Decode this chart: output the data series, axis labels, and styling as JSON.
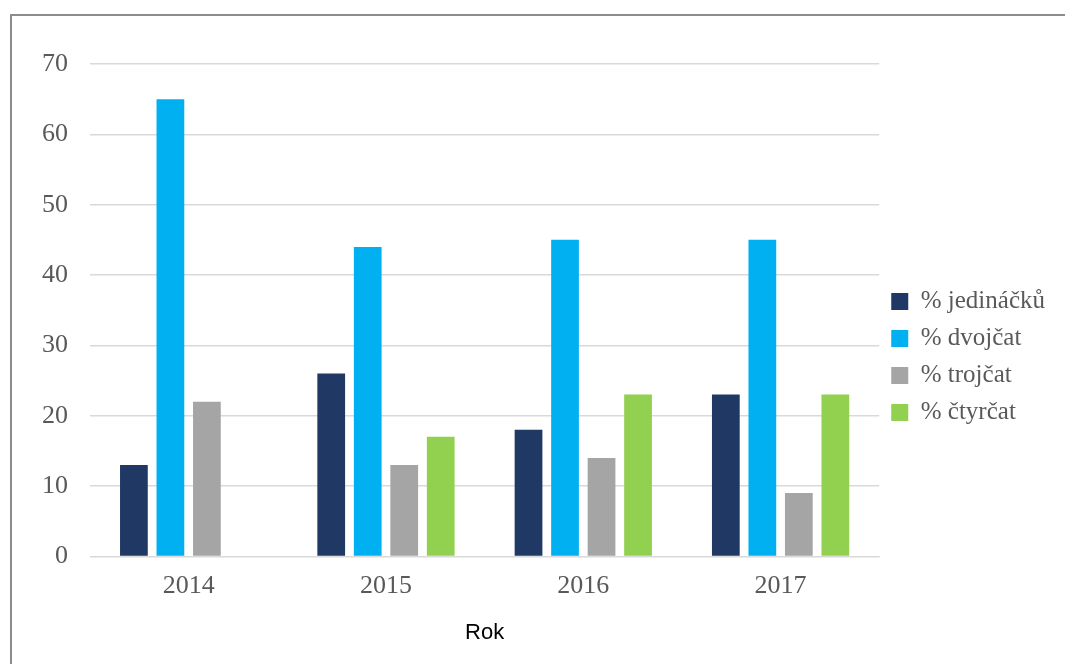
{
  "chart_data": {
    "type": "bar",
    "xlabel": "Rok",
    "categories": [
      "2014",
      "2015",
      "2016",
      "2017"
    ],
    "series": [
      {
        "name": "% jedináčků",
        "color": "#1f3864",
        "values": [
          13,
          26,
          18,
          23
        ]
      },
      {
        "name": "% dvojčat",
        "color": "#00b0f0",
        "values": [
          65,
          44,
          45,
          45
        ]
      },
      {
        "name": "% trojčat",
        "color": "#a5a5a5",
        "values": [
          22,
          13,
          14,
          9
        ]
      },
      {
        "name": "% čtyrčat",
        "color": "#92d050",
        "values": [
          null,
          17,
          23,
          23
        ]
      }
    ],
    "ylim": [
      0,
      70
    ],
    "yticks": [
      0,
      10,
      20,
      30,
      40,
      50,
      60,
      70
    ],
    "grid": "y",
    "legend": "right"
  }
}
